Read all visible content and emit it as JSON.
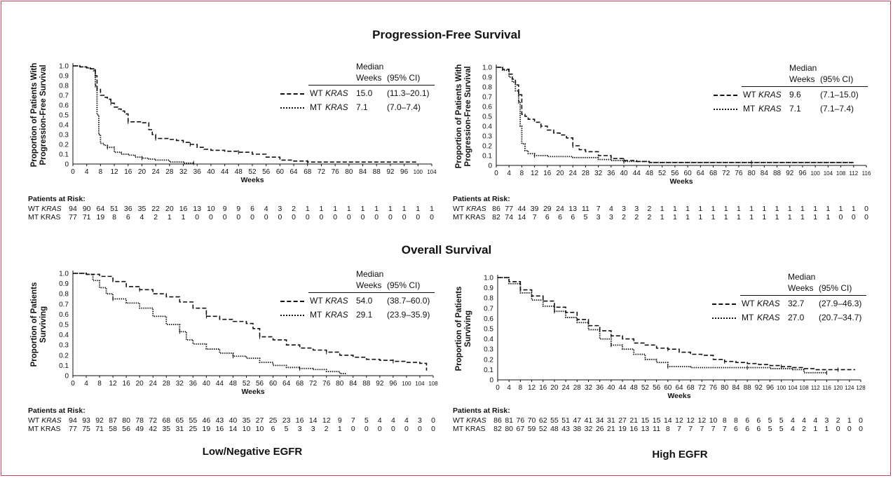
{
  "sections": {
    "pfs_title": "Progression-Free Survival",
    "os_title": "Overall Survival"
  },
  "bottom_labels": {
    "left": "Low/Negative EGFR",
    "right": "High EGFR"
  },
  "risk_title": "Patients at Risk:",
  "colors": {
    "line": "#111111",
    "frame": "#c8455a"
  },
  "legend_header": {
    "median": "Median",
    "weeks": "Weeks",
    "ci": "(95% CI)"
  },
  "chart_data": [
    {
      "id": "pfs_low",
      "type": "line",
      "ylabel_line1": "Proportion of Patients With",
      "ylabel_line2": "Progression-Free Survival",
      "xlabel": "Weeks",
      "xlim": [
        0,
        104
      ],
      "ylim": [
        0,
        1.0
      ],
      "xticks": [
        0,
        4,
        8,
        12,
        16,
        20,
        24,
        28,
        32,
        36,
        40,
        44,
        48,
        52,
        56,
        60,
        64,
        68,
        72,
        76,
        80,
        84,
        88,
        92,
        96,
        100,
        104
      ],
      "yticks": [
        "1.0",
        "0.9",
        "0.8",
        "0.7",
        "0.6",
        "0.5",
        "0.4",
        "0.3",
        "0.2",
        "0.1",
        "0"
      ],
      "series": [
        {
          "name": "WT KRAS",
          "label_prefix": "WT ",
          "label_italic": "KRAS",
          "median": "15.0",
          "ci": "(11.3–20.1)",
          "style": "dashed",
          "x": [
            0,
            2,
            4,
            5,
            6,
            6.5,
            7,
            8,
            9,
            10,
            11,
            12,
            13,
            14,
            15,
            16,
            18,
            20,
            22,
            23,
            24,
            26,
            28,
            30,
            32,
            34,
            36,
            38,
            40,
            44,
            48,
            52,
            56,
            60,
            64,
            68,
            72,
            80,
            90,
            100
          ],
          "y": [
            1.0,
            0.99,
            0.98,
            0.97,
            0.96,
            0.9,
            0.76,
            0.7,
            0.68,
            0.66,
            0.62,
            0.58,
            0.56,
            0.54,
            0.51,
            0.43,
            0.43,
            0.42,
            0.35,
            0.3,
            0.26,
            0.26,
            0.25,
            0.24,
            0.22,
            0.2,
            0.17,
            0.15,
            0.14,
            0.13,
            0.12,
            0.1,
            0.07,
            0.04,
            0.03,
            0.02,
            0.02,
            0.02,
            0.02,
            0.02
          ]
        },
        {
          "name": "MT KRAS",
          "label_prefix": "MT ",
          "label_italic": "KRAS",
          "median": "7.1",
          "ci": "(7.0–7.4)",
          "style": "dotted",
          "x": [
            0,
            2,
            4,
            5,
            6,
            6.5,
            7,
            7.5,
            8,
            9,
            10,
            12,
            14,
            16,
            18,
            20,
            22,
            24,
            28,
            32,
            35
          ],
          "y": [
            1.0,
            0.99,
            0.98,
            0.97,
            0.95,
            0.8,
            0.5,
            0.3,
            0.21,
            0.19,
            0.17,
            0.12,
            0.1,
            0.09,
            0.07,
            0.06,
            0.05,
            0.04,
            0.02,
            0.01,
            0.01
          ]
        }
      ],
      "risk": {
        "wt_label_prefix": "WT ",
        "wt_label_italic": "KRAS",
        "mt_label": "MT KRAS",
        "wt": [
          "94",
          "90",
          "64",
          "51",
          "36",
          "35",
          "22",
          "20",
          "16",
          "13",
          "10",
          "9",
          "9",
          "6",
          "4",
          "3",
          "2",
          "1",
          "1",
          "1",
          "1",
          "1",
          "1",
          "1",
          "1",
          "1",
          "1"
        ],
        "mt": [
          "77",
          "71",
          "19",
          "8",
          "6",
          "4",
          "2",
          "1",
          "1",
          "0",
          "0",
          "0",
          "0",
          "0",
          "0",
          "0",
          "0",
          "0",
          "0",
          "0",
          "0",
          "0",
          "0",
          "0",
          "0",
          "0",
          "0"
        ]
      }
    },
    {
      "id": "pfs_high",
      "type": "line",
      "ylabel_line1": "Proportion of Patients With",
      "ylabel_line2": "Progression-Free Survival",
      "xlabel": "Weeks",
      "xlim": [
        0,
        116
      ],
      "ylim": [
        0,
        1.0
      ],
      "xticks": [
        0,
        4,
        8,
        12,
        16,
        20,
        24,
        28,
        32,
        36,
        40,
        44,
        48,
        52,
        56,
        60,
        64,
        68,
        72,
        76,
        80,
        84,
        88,
        92,
        96,
        100,
        104,
        108,
        112,
        116
      ],
      "yticks": [
        "1.0",
        "0.9",
        "0.8",
        "0.7",
        "0.6",
        "0.5",
        "0.4",
        "0.3",
        "0.2",
        "0.1",
        "0"
      ],
      "series": [
        {
          "name": "WT KRAS",
          "label_prefix": "WT ",
          "label_italic": "KRAS",
          "median": "9.6",
          "ci": "(7.1–15.0)",
          "style": "dashed",
          "x": [
            0,
            2,
            4,
            5,
            6,
            7,
            8,
            9,
            10,
            12,
            14,
            16,
            18,
            20,
            22,
            24,
            26,
            28,
            32,
            36,
            40,
            44,
            48,
            56,
            64,
            80,
            96,
            112
          ],
          "y": [
            1.0,
            0.98,
            0.93,
            0.88,
            0.82,
            0.72,
            0.52,
            0.5,
            0.47,
            0.44,
            0.4,
            0.36,
            0.33,
            0.31,
            0.28,
            0.2,
            0.16,
            0.14,
            0.1,
            0.07,
            0.05,
            0.04,
            0.03,
            0.03,
            0.03,
            0.03,
            0.03,
            0.03
          ]
        },
        {
          "name": "MT KRAS",
          "label_prefix": "MT ",
          "label_italic": "KRAS",
          "median": "7.1",
          "ci": "(7.1–7.4)",
          "style": "dotted",
          "x": [
            0,
            2,
            4,
            5,
            6,
            7,
            7.5,
            8,
            9,
            10,
            12,
            16,
            24,
            32,
            36,
            40,
            48,
            64,
            80,
            112
          ],
          "y": [
            1.0,
            0.97,
            0.9,
            0.85,
            0.76,
            0.65,
            0.4,
            0.22,
            0.15,
            0.12,
            0.1,
            0.09,
            0.08,
            0.06,
            0.05,
            0.04,
            0.03,
            0.03,
            0.03,
            0.03
          ]
        }
      ],
      "risk": {
        "wt_label_prefix": "WT ",
        "wt_label_italic": "KRAS",
        "mt_label": "MT KRAS",
        "wt": [
          "86",
          "77",
          "44",
          "39",
          "29",
          "24",
          "13",
          "11",
          "7",
          "4",
          "3",
          "3",
          "2",
          "1",
          "1",
          "1",
          "1",
          "1",
          "1",
          "1",
          "1",
          "1",
          "1",
          "1",
          "1",
          "1",
          "1",
          "1",
          "1",
          "0"
        ],
        "mt": [
          "82",
          "74",
          "14",
          "7",
          "6",
          "6",
          "6",
          "5",
          "3",
          "3",
          "2",
          "2",
          "2",
          "1",
          "1",
          "1",
          "1",
          "1",
          "1",
          "1",
          "1",
          "1",
          "1",
          "1",
          "1",
          "1",
          "1",
          "0",
          "0",
          "0"
        ]
      }
    },
    {
      "id": "os_low",
      "type": "line",
      "ylabel_line1": "Proportion of Patients",
      "ylabel_line2": "Surviving",
      "xlabel": "Weeks",
      "xlim": [
        0,
        108
      ],
      "ylim": [
        0,
        1.0
      ],
      "xticks": [
        0,
        4,
        8,
        12,
        16,
        20,
        24,
        28,
        32,
        36,
        40,
        44,
        48,
        52,
        56,
        60,
        64,
        68,
        72,
        76,
        80,
        84,
        88,
        92,
        96,
        100,
        104,
        108
      ],
      "yticks": [
        "1.0",
        "0.9",
        "0.8",
        "0.7",
        "0.6",
        "0.5",
        "0.4",
        "0.3",
        "0.2",
        "0.1",
        "0"
      ],
      "series": [
        {
          "name": "WT KRAS",
          "label_prefix": "WT ",
          "label_italic": "KRAS",
          "median": "54.0",
          "ci": "(38.7–60.0)",
          "style": "dashed",
          "x": [
            0,
            4,
            8,
            12,
            16,
            20,
            24,
            28,
            32,
            36,
            40,
            44,
            48,
            52,
            54,
            56,
            60,
            64,
            68,
            72,
            76,
            80,
            84,
            88,
            92,
            96,
            100,
            104,
            106
          ],
          "y": [
            1.0,
            0.99,
            0.97,
            0.92,
            0.87,
            0.84,
            0.8,
            0.77,
            0.72,
            0.66,
            0.58,
            0.55,
            0.53,
            0.51,
            0.46,
            0.38,
            0.35,
            0.3,
            0.27,
            0.25,
            0.23,
            0.2,
            0.18,
            0.16,
            0.15,
            0.14,
            0.13,
            0.12,
            0.05
          ]
        },
        {
          "name": "MT KRAS",
          "label_prefix": "MT ",
          "label_italic": "KRAS",
          "median": "29.1",
          "ci": "(23.9–35.9)",
          "style": "dotted",
          "x": [
            0,
            4,
            6,
            8,
            10,
            12,
            16,
            20,
            24,
            28,
            32,
            34,
            36,
            40,
            44,
            48,
            52,
            56,
            60,
            64,
            68,
            72,
            76,
            80,
            82
          ],
          "y": [
            1.0,
            0.99,
            0.93,
            0.86,
            0.8,
            0.75,
            0.71,
            0.66,
            0.58,
            0.5,
            0.43,
            0.35,
            0.31,
            0.26,
            0.22,
            0.19,
            0.17,
            0.13,
            0.1,
            0.08,
            0.07,
            0.06,
            0.04,
            0.02,
            0.02
          ]
        }
      ],
      "risk": {
        "wt_label_prefix": "WT ",
        "wt_label_italic": "KRAS",
        "mt_label": "MT KRAS",
        "wt": [
          "94",
          "93",
          "92",
          "87",
          "80",
          "78",
          "72",
          "68",
          "65",
          "55",
          "46",
          "43",
          "40",
          "35",
          "27",
          "25",
          "23",
          "16",
          "14",
          "12",
          "9",
          "7",
          "5",
          "4",
          "4",
          "4",
          "3",
          "0"
        ],
        "mt": [
          "77",
          "75",
          "71",
          "58",
          "56",
          "49",
          "42",
          "35",
          "31",
          "25",
          "19",
          "16",
          "14",
          "10",
          "10",
          "6",
          "5",
          "3",
          "3",
          "2",
          "1",
          "0",
          "0",
          "0",
          "0",
          "0",
          "0",
          "0"
        ]
      }
    },
    {
      "id": "os_high",
      "type": "line",
      "ylabel_line1": "Proportion of Patients",
      "ylabel_line2": "Surviving",
      "xlabel": "Weeks",
      "xlim": [
        0,
        128
      ],
      "ylim": [
        0,
        1.0
      ],
      "xticks": [
        0,
        4,
        8,
        12,
        16,
        20,
        24,
        28,
        32,
        36,
        40,
        44,
        48,
        52,
        56,
        60,
        64,
        68,
        72,
        76,
        80,
        84,
        88,
        92,
        96,
        100,
        104,
        108,
        112,
        116,
        120,
        124,
        128
      ],
      "yticks": [
        "1.0",
        "0.9",
        "0.8",
        "0.7",
        "0.6",
        "0.5",
        "0.4",
        "0.3",
        "0.2",
        "0.1",
        "0"
      ],
      "series": [
        {
          "name": "WT KRAS",
          "label_prefix": "WT ",
          "label_italic": "KRAS",
          "median": "32.7",
          "ci": "(27.9–46.3)",
          "style": "dashed",
          "x": [
            0,
            4,
            8,
            12,
            16,
            20,
            24,
            28,
            32,
            36,
            40,
            44,
            48,
            52,
            56,
            60,
            64,
            68,
            72,
            76,
            80,
            84,
            88,
            92,
            96,
            100,
            104,
            108,
            112,
            116,
            120,
            124,
            126
          ],
          "y": [
            1.0,
            0.96,
            0.88,
            0.82,
            0.77,
            0.71,
            0.66,
            0.59,
            0.53,
            0.48,
            0.43,
            0.4,
            0.36,
            0.34,
            0.31,
            0.3,
            0.27,
            0.25,
            0.24,
            0.2,
            0.18,
            0.17,
            0.16,
            0.15,
            0.14,
            0.13,
            0.12,
            0.11,
            0.1,
            0.1,
            0.1,
            0.1,
            0.1
          ]
        },
        {
          "name": "MT KRAS",
          "label_prefix": "MT ",
          "label_italic": "KRAS",
          "median": "27.0",
          "ci": "(20.7–34.7)",
          "style": "dotted",
          "x": [
            0,
            4,
            8,
            12,
            16,
            20,
            24,
            28,
            32,
            36,
            40,
            44,
            48,
            52,
            56,
            60,
            64,
            68,
            72,
            80,
            88,
            96,
            104,
            108,
            112,
            116
          ],
          "y": [
            1.0,
            0.94,
            0.85,
            0.78,
            0.72,
            0.67,
            0.61,
            0.56,
            0.49,
            0.4,
            0.34,
            0.3,
            0.25,
            0.2,
            0.17,
            0.13,
            0.13,
            0.12,
            0.12,
            0.12,
            0.12,
            0.11,
            0.1,
            0.07,
            0.07,
            0.07
          ]
        }
      ],
      "risk": {
        "wt_label_prefix": "WT ",
        "wt_label_italic": "KRAS",
        "mt_label": "MT KRAS",
        "wt": [
          "86",
          "81",
          "76",
          "70",
          "62",
          "55",
          "51",
          "47",
          "41",
          "34",
          "31",
          "27",
          "21",
          "15",
          "15",
          "14",
          "12",
          "12",
          "12",
          "10",
          "8",
          "8",
          "6",
          "6",
          "5",
          "5",
          "4",
          "4",
          "4",
          "3",
          "2",
          "1",
          "0"
        ],
        "mt": [
          "82",
          "80",
          "67",
          "59",
          "52",
          "48",
          "43",
          "38",
          "32",
          "26",
          "21",
          "19",
          "16",
          "13",
          "11",
          "8",
          "7",
          "7",
          "7",
          "7",
          "7",
          "6",
          "6",
          "6",
          "5",
          "5",
          "4",
          "2",
          "1",
          "1",
          "0",
          "0",
          "0"
        ]
      }
    }
  ]
}
